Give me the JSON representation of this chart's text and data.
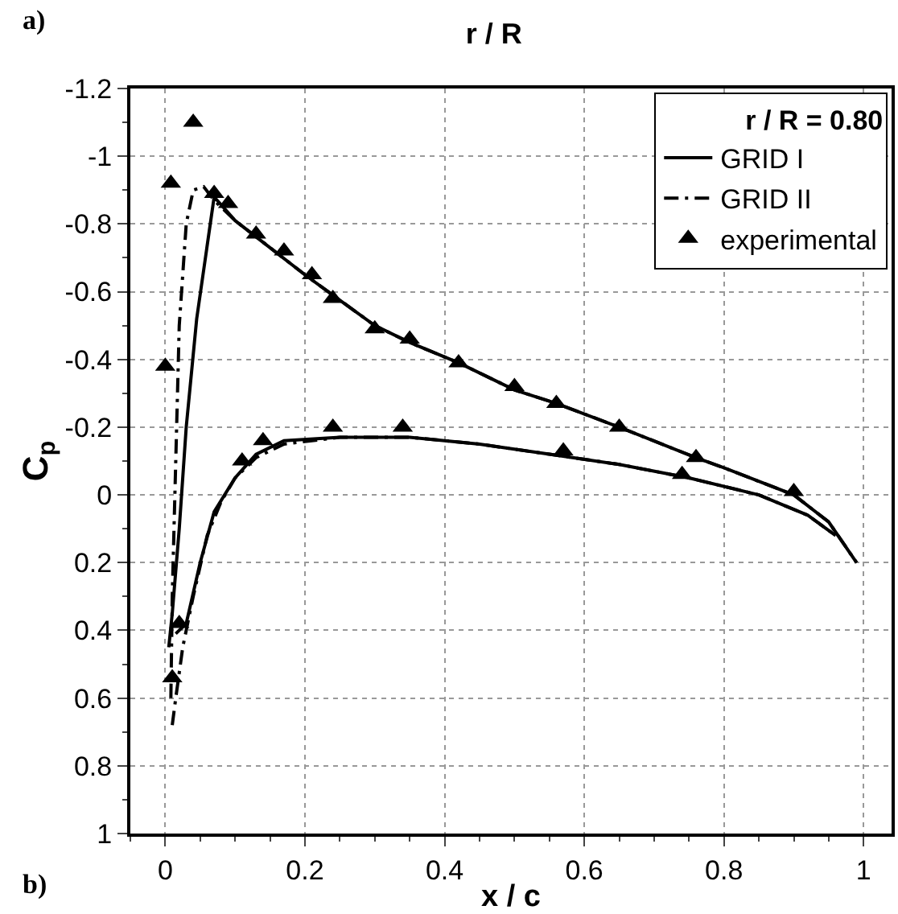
{
  "chart_data": {
    "type": "line",
    "title": "r / R",
    "xlabel": "x / c",
    "ylabel": "C$_{p}$",
    "legend_title": "r / R = 0.80",
    "annotations": [
      "a)",
      "b)"
    ],
    "xlim": [
      -0.05,
      1.04
    ],
    "xticks": [
      0,
      0.2,
      0.4,
      0.6,
      0.8,
      1
    ],
    "ylim": [
      1,
      -1.2
    ],
    "yticks": [
      -1.2,
      -1,
      -0.8,
      -0.6,
      -0.4,
      -0.2,
      0,
      0.2,
      0.4,
      0.6,
      0.8,
      1
    ],
    "grid": true,
    "legend": "top right",
    "series": [
      {
        "name": "GRID I",
        "line_style": "solid",
        "marker": "none",
        "color": "#000000",
        "x": [
          0.005,
          0.01,
          0.02,
          0.03,
          0.045,
          0.07,
          0.1,
          0.15,
          0.2,
          0.24,
          0.3,
          0.35,
          0.42,
          0.5,
          0.56,
          0.65,
          0.76,
          0.8,
          0.9,
          0.95,
          0.99
        ],
        "values": [
          0.45,
          0.35,
          0.1,
          -0.2,
          -0.52,
          -0.88,
          -0.81,
          -0.73,
          -0.65,
          -0.59,
          -0.5,
          -0.45,
          -0.39,
          -0.31,
          -0.27,
          -0.2,
          -0.11,
          -0.08,
          0.0,
          0.08,
          0.2
        ]
      },
      {
        "line_style": "solid",
        "marker": "none",
        "color": "#000000",
        "x": [
          0.015,
          0.03,
          0.05,
          0.07,
          0.1,
          0.13,
          0.17,
          0.25,
          0.35,
          0.45,
          0.55,
          0.65,
          0.75,
          0.85,
          0.92,
          0.96
        ],
        "values": [
          0.41,
          0.38,
          0.2,
          0.05,
          -0.05,
          -0.12,
          -0.16,
          -0.17,
          -0.17,
          -0.15,
          -0.12,
          -0.09,
          -0.05,
          0.0,
          0.06,
          0.12
        ]
      },
      {
        "name": "GRID II",
        "line_style": "dashdot",
        "marker": "none",
        "color": "#000000",
        "x": [
          0.008,
          0.01,
          0.015,
          0.02,
          0.03,
          0.04,
          0.055,
          0.07,
          0.1,
          0.15,
          0.2,
          0.24,
          0.3,
          0.35,
          0.42,
          0.5,
          0.56,
          0.65,
          0.76,
          0.8,
          0.9,
          0.95,
          0.99
        ],
        "values": [
          0.6,
          0.3,
          -0.1,
          -0.5,
          -0.8,
          -0.9,
          -0.91,
          -0.87,
          -0.81,
          -0.73,
          -0.65,
          -0.59,
          -0.5,
          -0.45,
          -0.39,
          -0.31,
          -0.27,
          -0.2,
          -0.11,
          -0.08,
          0.0,
          0.08,
          0.2
        ]
      },
      {
        "line_style": "dashdot",
        "marker": "none",
        "color": "#000000",
        "x": [
          0.01,
          0.015,
          0.025,
          0.04,
          0.06,
          0.08,
          0.1,
          0.13,
          0.17,
          0.25,
          0.35,
          0.45,
          0.55,
          0.65,
          0.75,
          0.85,
          0.92,
          0.96
        ],
        "values": [
          0.68,
          0.6,
          0.45,
          0.3,
          0.12,
          0.02,
          -0.05,
          -0.11,
          -0.15,
          -0.17,
          -0.17,
          -0.15,
          -0.12,
          -0.09,
          -0.05,
          0.0,
          0.06,
          0.12
        ]
      },
      {
        "name": "experimental",
        "type": "scatter",
        "marker": "triangle",
        "color": "#000000",
        "x": [
          0.0,
          0.008,
          0.04,
          0.07,
          0.09,
          0.13,
          0.17,
          0.21,
          0.24,
          0.3,
          0.35,
          0.42,
          0.5,
          0.56,
          0.65,
          0.76,
          0.9,
          0.11,
          0.14,
          0.24,
          0.34,
          0.57,
          0.74,
          0.02,
          0.01
        ],
        "values": [
          -0.38,
          -0.92,
          -1.1,
          -0.89,
          -0.86,
          -0.77,
          -0.72,
          -0.65,
          -0.58,
          -0.49,
          -0.46,
          -0.39,
          -0.32,
          -0.27,
          -0.2,
          -0.11,
          -0.01,
          -0.1,
          -0.16,
          -0.2,
          -0.2,
          -0.13,
          -0.06,
          0.38,
          0.54
        ]
      }
    ]
  }
}
